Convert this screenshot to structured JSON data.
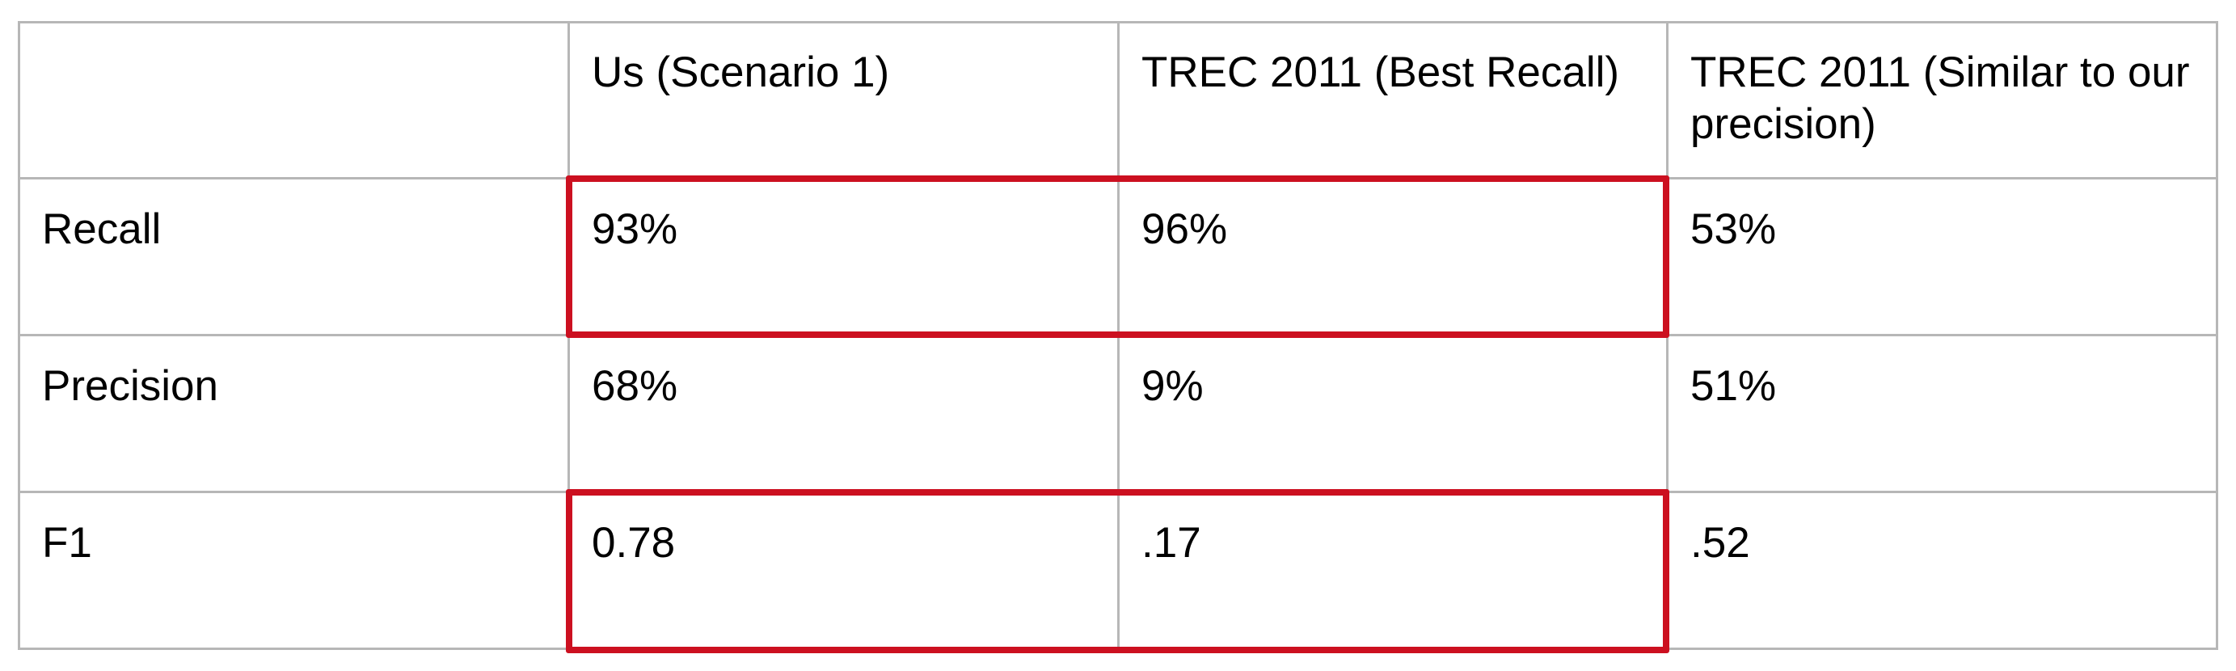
{
  "table": {
    "headers": [
      "",
      "Us (Scenario 1)",
      "TREC 2011 (Best Recall)",
      "TREC 2011 (Similar to our precision)"
    ],
    "rows": [
      {
        "label": "Recall",
        "cells": [
          "93%",
          "96%",
          "53%"
        ]
      },
      {
        "label": "Precision",
        "cells": [
          "68%",
          "9%",
          "51%"
        ]
      },
      {
        "label": "F1",
        "cells": [
          "0.78",
          ".17",
          ".52"
        ]
      }
    ]
  },
  "colors": {
    "grid": "#b7b7b7",
    "highlight": "#cc1020"
  }
}
